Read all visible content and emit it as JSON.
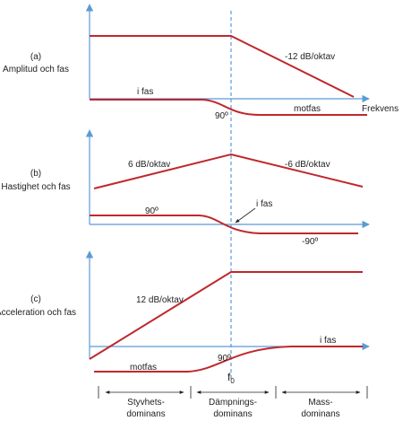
{
  "panel_a": {
    "id": "(a)",
    "label": "Amplitud och fas",
    "slope": "-12 dB/oktav",
    "phase_in": "i fas",
    "phase_90": "90º",
    "phase_out": "motfas",
    "axis": "Frekvens"
  },
  "panel_b": {
    "id": "(b)",
    "label": "Hastighet och fas",
    "slope_up": "6 dB/oktav",
    "slope_down": "-6 dB/oktav",
    "phase_90": "90º",
    "phase_in": "i fas",
    "phase_m90": "-90º"
  },
  "panel_c": {
    "id": "(c)",
    "label": "Acceleration och fas",
    "slope": "12 dB/oktav",
    "phase_90": "90º",
    "phase_out": "motfas",
    "phase_in": "i fas",
    "f0_symbol": "f",
    "f0_subscript": "0"
  },
  "regions": [
    {
      "line1": "Styvhets-",
      "line2": "dominans"
    },
    {
      "line1": "Dämpnings-",
      "line2": "dominans"
    },
    {
      "line1": "Mass-",
      "line2": "dominans"
    }
  ]
}
